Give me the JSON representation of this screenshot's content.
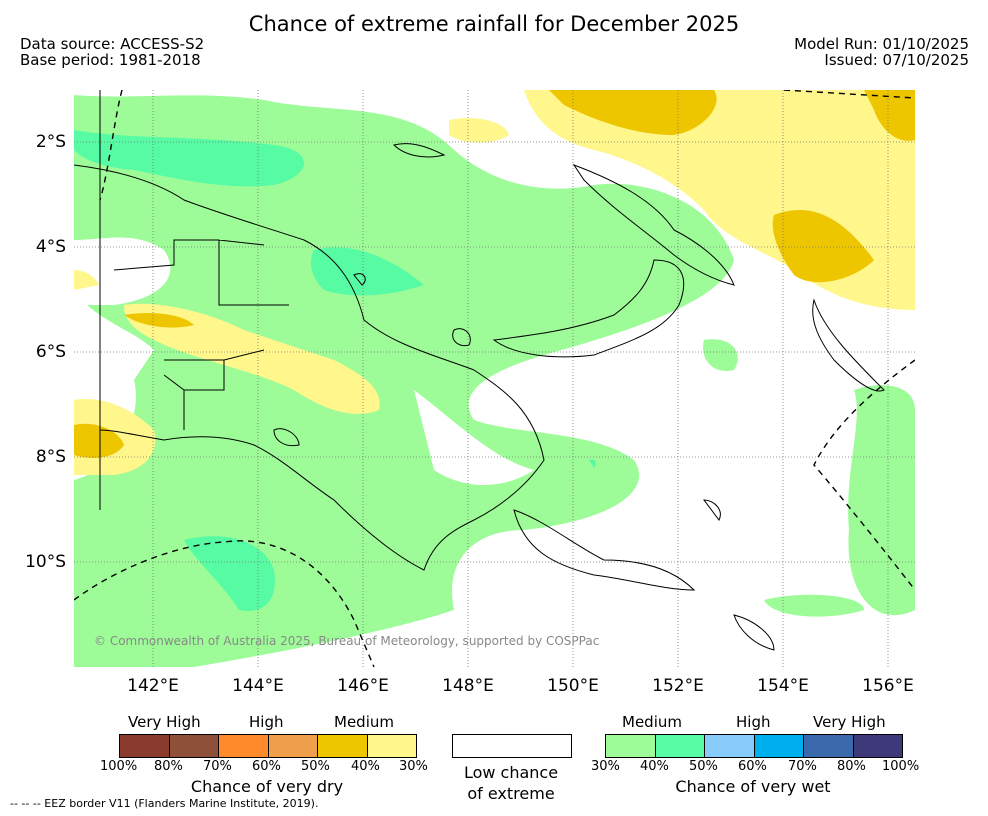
{
  "title": "Chance of extreme rainfall for December 2025",
  "header": {
    "data_source": "Data source: ACCESS-S2",
    "base_period": "Base period: 1981-2018",
    "model_run": "Model Run: 01/10/2025",
    "issued": "Issued: 07/10/2025"
  },
  "axes": {
    "lat_labels": [
      "2°S",
      "4°S",
      "6°S",
      "8°S",
      "10°S"
    ],
    "lon_labels": [
      "142°E",
      "144°E",
      "146°E",
      "148°E",
      "150°E",
      "152°E",
      "154°E",
      "156°E"
    ]
  },
  "map": {
    "copyright": "© Commonwealth of Australia 2025, Bureau of Meteorology, supported by COSPPac"
  },
  "legend": {
    "dry": {
      "levels": [
        "Very High",
        "High",
        "Medium"
      ],
      "percents": [
        "100%",
        "80%",
        "70%",
        "60%",
        "50%",
        "40%",
        "30%"
      ],
      "caption": "Chance of very dry",
      "colors": [
        "#8b3a2e",
        "#8e5038",
        "#ff8a2c",
        "#f0a04a",
        "#eec600",
        "#fff68c"
      ]
    },
    "neutral": {
      "caption_line1": "Low chance",
      "caption_line2": "of extreme",
      "color": "#ffffff"
    },
    "wet": {
      "levels": [
        "Medium",
        "High",
        "Very High"
      ],
      "percents": [
        "30%",
        "40%",
        "50%",
        "60%",
        "70%",
        "80%",
        "100%"
      ],
      "caption": "Chance of very wet",
      "colors": [
        "#9dfc98",
        "#56fba4",
        "#88ccfc",
        "#00b0ee",
        "#3a6aac",
        "#3e3a7a"
      ]
    }
  },
  "footer": "--  --  -- EEZ border V11 (Flanders Marine Institute, 2019)."
}
